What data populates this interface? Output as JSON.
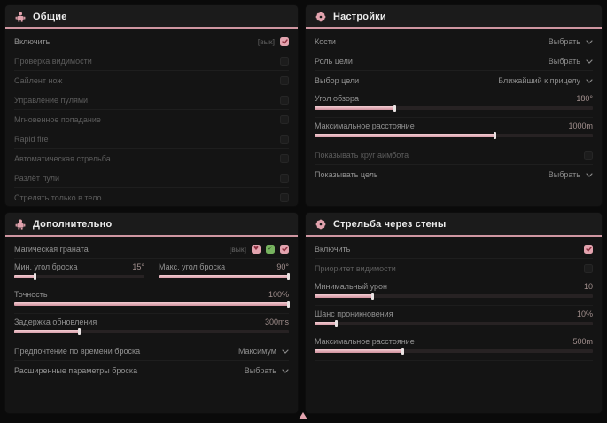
{
  "accent": "#e2a3ae",
  "panels": {
    "general": {
      "title": "Общие",
      "icon": "aimbot-person-icon",
      "rows": [
        {
          "type": "checkbox",
          "label": "Включить",
          "prefix": "[вык]",
          "checked": true
        },
        {
          "type": "checkbox",
          "label": "Проверка видимости",
          "checked": false,
          "dim": true
        },
        {
          "type": "checkbox",
          "label": "Сайлент нож",
          "checked": false,
          "dim": true
        },
        {
          "type": "checkbox",
          "label": "Управление пулями",
          "checked": false,
          "dim": true
        },
        {
          "type": "checkbox",
          "label": "Мгновенное попадание",
          "checked": false,
          "dim": true
        },
        {
          "type": "checkbox",
          "label": "Rapid fire",
          "checked": false,
          "dim": true
        },
        {
          "type": "checkbox",
          "label": "Автоматическая стрельба",
          "checked": false,
          "dim": true
        },
        {
          "type": "checkbox",
          "label": "Разлёт пули",
          "checked": false,
          "dim": true
        },
        {
          "type": "checkbox",
          "label": "Стрелять только в тело",
          "checked": false,
          "dim": true
        }
      ]
    },
    "settings": {
      "title": "Настройки",
      "icon": "gear-flower-icon",
      "rows": [
        {
          "type": "dropdown",
          "label": "Кости",
          "value": "Выбрать"
        },
        {
          "type": "dropdown",
          "label": "Роль цели",
          "value": "Выбрать"
        },
        {
          "type": "dropdown",
          "label": "Выбор цели",
          "value": "Ближайший к прицелу"
        },
        {
          "type": "slider",
          "label": "Угол обзора",
          "value": "180°",
          "fill": 29
        },
        {
          "type": "slider",
          "label": "Максимальное расстояние",
          "value": "1000m",
          "fill": 65
        },
        {
          "type": "checkbox",
          "label": "Показывать круг аимбота",
          "checked": false,
          "dim": true
        },
        {
          "type": "dropdown",
          "label": "Показывать цель",
          "value": "Выбрать"
        }
      ]
    },
    "additional": {
      "title": "Дополнительно",
      "icon": "aimbot-person-icon",
      "rows": [
        {
          "type": "checkbox",
          "label": "Магическая граната",
          "prefix": "[вык]",
          "badges": [
            "heart",
            "check"
          ],
          "checked": true
        },
        {
          "type": "sliderpair",
          "items": [
            {
              "label": "Мин. угол броска",
              "value": "15°",
              "fill": 16
            },
            {
              "label": "Макс. угол броска",
              "value": "90°",
              "fill": 100
            }
          ]
        },
        {
          "type": "slider",
          "label": "Точность",
          "value": "100%",
          "fill": 100
        },
        {
          "type": "slider",
          "label": "Задержка обновления",
          "value": "300ms",
          "fill": 24
        },
        {
          "type": "dropdown",
          "label": "Предпочтение по времени броска",
          "value": "Максимум"
        },
        {
          "type": "dropdown",
          "label": "Расширенные параметры броска",
          "value": "Выбрать"
        }
      ]
    },
    "wallshoot": {
      "title": "Стрельба через стены",
      "icon": "gear-flower-icon",
      "rows": [
        {
          "type": "checkbox",
          "label": "Включить",
          "checked": true
        },
        {
          "type": "checkbox",
          "label": "Приоритет видимости",
          "checked": false,
          "dim": true
        },
        {
          "type": "slider",
          "label": "Минимальный урон",
          "value": "10",
          "fill": 21
        },
        {
          "type": "slider",
          "label": "Шанс проникновения",
          "value": "10%",
          "fill": 8
        },
        {
          "type": "slider",
          "label": "Максимальное расстояние",
          "value": "500m",
          "fill": 32
        }
      ]
    }
  },
  "cursor_icon": "up-arrow"
}
